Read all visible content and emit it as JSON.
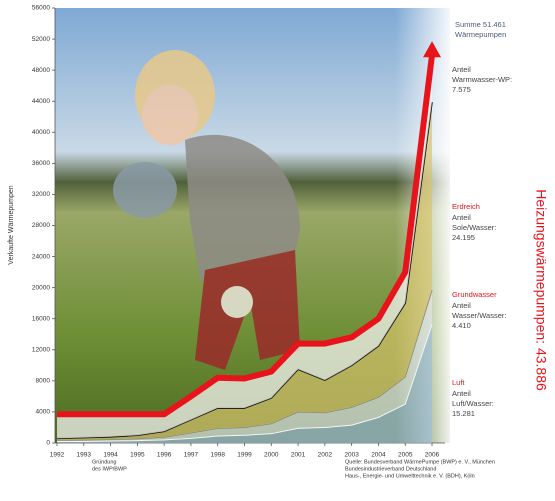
{
  "chart_data": {
    "type": "stacked-area",
    "y_label": "Verkaufte Wärmepumpen",
    "categories": [
      "1992",
      "1993",
      "1994",
      "1995",
      "1996",
      "1997",
      "1998",
      "1999",
      "2000",
      "2001",
      "2002",
      "2003",
      "2004",
      "2005",
      "2006"
    ],
    "ylim": [
      0,
      56000
    ],
    "yticks": [
      0,
      4000,
      8000,
      12000,
      16000,
      20000,
      24000,
      28000,
      32000,
      36000,
      40000,
      44000,
      48000,
      52000,
      56000
    ],
    "series": [
      {
        "name": "Luft",
        "color": "#9fbedb",
        "note": [
          "Anteil",
          "Luft/Wasser:",
          "15.281"
        ],
        "values": [
          200,
          200,
          250,
          300,
          400,
          600,
          900,
          1000,
          1200,
          1900,
          2000,
          2300,
          3300,
          5000,
          15281
        ]
      },
      {
        "name": "Grundwasser",
        "color": "#dfe5ea",
        "note": [
          "Anteil",
          "Wasser/Wasser:",
          "4.410"
        ],
        "values": [
          150,
          200,
          200,
          250,
          350,
          700,
          1000,
          1000,
          1300,
          2100,
          1900,
          2300,
          2600,
          3500,
          4410
        ]
      },
      {
        "name": "Erdreich",
        "color": "#d9c56e",
        "note": [
          "Anteil",
          "Sole/Wasser:",
          "24.195"
        ],
        "values": [
          250,
          300,
          350,
          450,
          750,
          1700,
          2600,
          2500,
          3300,
          5500,
          4200,
          5400,
          6600,
          9500,
          24195
        ]
      },
      {
        "color": "#f4f4f2",
        "note": [
          "Anteil",
          "Warmwasser-WP:",
          "7.575"
        ],
        "values": [
          3100,
          3000,
          2900,
          2700,
          2200,
          3000,
          3900,
          3800,
          3400,
          3300,
          4700,
          3600,
          3500,
          4000,
          7575
        ]
      }
    ],
    "total_color": "#e8141c",
    "total_label": [
      "Summe 51.461",
      "Wärmepumpen"
    ],
    "heating_label": "Heizungswärmepumpen: 43.886",
    "founding_note": [
      "Gründung",
      "des IWP/BWP"
    ],
    "source": [
      "Quelle: Bundesverband WärmePumpe (BWP) e. V., München",
      "Bundesindustrieverband Deutschland",
      "Haus-, Energie- und Umwelttechnik e. V. (BDH), Köln"
    ]
  }
}
